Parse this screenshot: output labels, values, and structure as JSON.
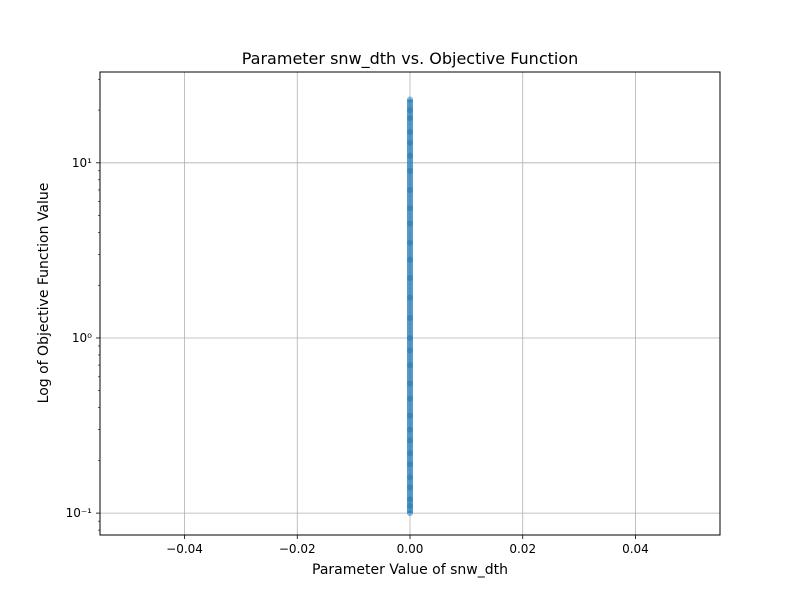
{
  "chart_data": {
    "type": "scatter",
    "title": "Parameter snw_dth vs. Objective Function",
    "xlabel": "Parameter Value of snw_dth",
    "ylabel": "Log of Objective Function Value",
    "xlim": [
      -0.055,
      0.055
    ],
    "ylim": [
      0.075,
      33
    ],
    "yscale": "log",
    "grid": true,
    "marker_color": "#1f77b4",
    "x_ticks": [
      -0.04,
      -0.02,
      0.0,
      0.02,
      0.04
    ],
    "x_tick_labels": [
      "−0.04",
      "−0.02",
      "0.00",
      "0.02",
      "0.04"
    ],
    "y_ticks": [
      0.1,
      1,
      10
    ],
    "y_tick_labels": [
      "10⁻¹",
      "10⁰",
      "10¹"
    ],
    "series": [
      {
        "x": [
          0,
          0,
          0,
          0,
          0,
          0,
          0,
          0,
          0,
          0,
          0,
          0,
          0,
          0,
          0,
          0,
          0,
          0,
          0,
          0,
          0,
          0,
          0,
          0,
          0,
          0,
          0,
          0,
          0,
          0
        ],
        "y": [
          0.1,
          0.11,
          0.12,
          0.14,
          0.16,
          0.19,
          0.22,
          0.26,
          0.3,
          0.36,
          0.45,
          0.55,
          0.7,
          0.85,
          1.0,
          1.3,
          1.7,
          2.2,
          2.8,
          3.5,
          4.5,
          5.5,
          7,
          9,
          11,
          13,
          15,
          18,
          20,
          23
        ]
      }
    ]
  }
}
